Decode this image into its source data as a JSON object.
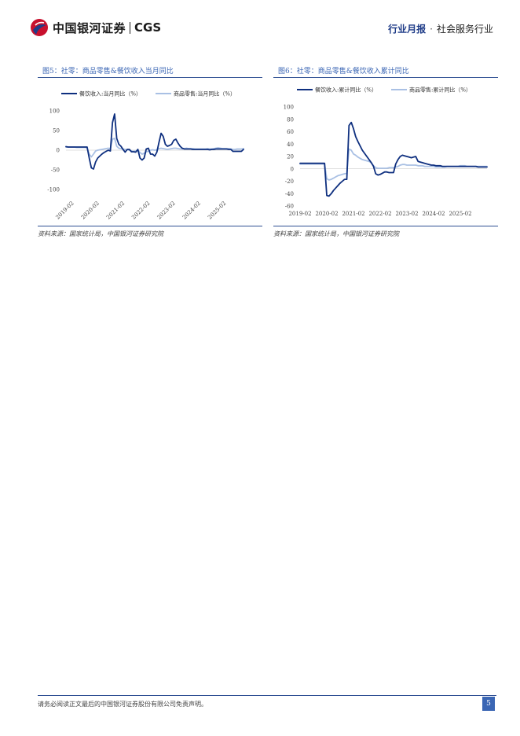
{
  "header": {
    "logo_cn": "中国银河证券",
    "logo_en": "CGS",
    "report_type": "行业月报",
    "separator": "·",
    "industry": "社会服务行业"
  },
  "colors": {
    "dark_series": "#0e2f7f",
    "light_series": "#a9c0e4",
    "accent": "#3b66b4"
  },
  "figures": [
    {
      "title": "图5：社零：商品零售&餐饮收入当月同比",
      "source": "资料来源：国家统计局，中国银河证券研究院",
      "chart_data": {
        "type": "line",
        "legend": [
          "餐饮收入:当月同比（%）",
          "商品零售:当月同比（%）"
        ],
        "ylim": [
          -100,
          100
        ],
        "yticks": [
          "100",
          "50",
          "0",
          "-50",
          "-100"
        ],
        "xticks": [
          "2019-02",
          "2020-02",
          "2021-02",
          "2022-02",
          "2023-02",
          "2024-02",
          "2025-02"
        ],
        "x": [
          0,
          1,
          2,
          3,
          4,
          5,
          6,
          7,
          8,
          9,
          10,
          11,
          12,
          13,
          14,
          15,
          16,
          17,
          18,
          19,
          20,
          21,
          22,
          23,
          24,
          25,
          26,
          27,
          28,
          29,
          30,
          31,
          32,
          33,
          34,
          35,
          36,
          37,
          38,
          39,
          40,
          41,
          42,
          43,
          44,
          45,
          46,
          47,
          48,
          49,
          50,
          51,
          52,
          53,
          54,
          55,
          56,
          57,
          58,
          59,
          60,
          61,
          62,
          63,
          64,
          65,
          66,
          67,
          68,
          69,
          70,
          71,
          72,
          73,
          74,
          75,
          76,
          77,
          78,
          79,
          80,
          81,
          82,
          83,
          84
        ],
        "series": [
          {
            "name": "餐饮收入:当月同比（%）",
            "values": [
              9,
              8,
              8,
              8,
              8,
              8,
              8,
              8,
              8,
              8,
              8,
              -20,
              -45,
              -48,
              -30,
              -20,
              -15,
              -10,
              -6,
              -3,
              0,
              -2,
              70,
              92,
              30,
              15,
              10,
              2,
              -5,
              2,
              2,
              -4,
              -4,
              -5,
              2,
              -20,
              -25,
              -20,
              3,
              5,
              -10,
              -10,
              -15,
              -5,
              20,
              43,
              35,
              15,
              10,
              12,
              15,
              25,
              28,
              18,
              10,
              5,
              3,
              3,
              3,
              3,
              2,
              2,
              2,
              2,
              2,
              2,
              2,
              2,
              1,
              2,
              2,
              3,
              3,
              3,
              3,
              3,
              3,
              2,
              2,
              -3,
              -3,
              -3,
              -3,
              -3,
              2
            ]
          },
          {
            "name": "商品零售:当月同比（%）",
            "values": [
              8,
              8,
              8,
              8,
              8,
              7,
              7,
              7,
              7,
              7,
              6,
              -10,
              -17,
              -10,
              -2,
              0,
              1,
              2,
              3,
              4,
              5,
              4,
              28,
              30,
              10,
              5,
              4,
              3,
              2,
              1,
              0,
              -2,
              -3,
              -2,
              1,
              -6,
              -10,
              -8,
              -4,
              -3,
              0,
              1,
              0,
              1,
              4,
              5,
              4,
              3,
              2,
              3,
              4,
              5,
              5,
              4,
              3,
              3,
              4,
              5,
              4,
              4,
              4,
              3,
              3,
              3,
              3,
              3,
              3,
              4,
              3,
              3,
              4,
              5,
              6,
              5,
              4,
              4,
              4,
              4,
              3,
              2,
              2,
              3,
              3,
              3,
              4
            ]
          }
        ]
      }
    },
    {
      "title": "图6：社零：商品零售&餐饮收入累计同比",
      "source": "资料来源：国家统计局，中国银河证券研究院",
      "chart_data": {
        "type": "line",
        "legend": [
          "餐饮收入:累计同比（%）",
          "商品零售:累计同比（%）"
        ],
        "ylim": [
          -60,
          100
        ],
        "yticks": [
          "100",
          "80",
          "60",
          "40",
          "20",
          "0",
          "-20",
          "-40",
          "-60"
        ],
        "xticks": [
          "2019-02",
          "2020-02",
          "2021-02",
          "2022-02",
          "2023-02",
          "2024-02",
          "2025-02"
        ],
        "x": [
          0,
          1,
          2,
          3,
          4,
          5,
          6,
          7,
          8,
          9,
          10,
          11,
          12,
          13,
          14,
          15,
          16,
          17,
          18,
          19,
          20,
          21,
          22,
          23,
          24,
          25,
          26,
          27,
          28,
          29,
          30,
          31,
          32,
          33,
          34,
          35,
          36,
          37,
          38,
          39,
          40,
          41,
          42,
          43,
          44,
          45,
          46,
          47,
          48,
          49,
          50,
          51,
          52,
          53,
          54,
          55,
          56,
          57,
          58,
          59,
          60,
          61,
          62,
          63,
          64,
          65,
          66,
          67,
          68,
          69,
          70,
          71,
          72,
          73,
          74,
          75,
          76,
          77,
          78,
          79,
          80,
          81,
          82,
          83,
          84
        ],
        "series": [
          {
            "name": "餐饮收入:累计同比（%）",
            "values": [
              9,
              9,
              9,
              9,
              9,
              9,
              9,
              9,
              9,
              9,
              9,
              9,
              -43,
              -44,
              -40,
              -35,
              -31,
              -27,
              -23,
              -20,
              -17,
              -17,
              70,
              75,
              65,
              52,
              44,
              37,
              30,
              25,
              20,
              15,
              10,
              4,
              -8,
              -10,
              -9,
              -7,
              -5,
              -5,
              -6,
              -6,
              -6,
              8,
              15,
              20,
              22,
              21,
              20,
              19,
              18,
              19,
              20,
              12,
              11,
              10,
              9,
              8,
              7,
              6,
              6,
              5,
              5,
              5,
              4,
              4,
              4,
              4,
              4,
              4,
              4,
              4,
              4,
              4,
              4,
              4,
              4,
              4,
              4,
              4,
              3,
              3,
              3,
              3,
              3
            ]
          },
          {
            "name": "商品零售:累计同比（%）",
            "values": [
              8,
              8,
              8,
              8,
              8,
              8,
              8,
              8,
              8,
              8,
              8,
              8,
              -16,
              -18,
              -17,
              -15,
              -13,
              -11,
              -10,
              -9,
              -8,
              -7,
              32,
              30,
              24,
              22,
              19,
              17,
              15,
              14,
              13,
              12,
              10,
              5,
              2,
              1,
              1,
              1,
              1,
              1,
              2,
              2,
              2,
              3,
              4,
              6,
              7,
              7,
              6,
              6,
              6,
              6,
              6,
              5,
              5,
              5,
              4,
              4,
              4,
              4,
              4,
              3,
              3,
              3,
              3,
              3,
              4,
              4,
              4,
              4,
              4,
              4,
              5,
              5,
              5,
              4,
              4,
              4,
              4,
              4,
              4,
              4,
              4,
              4,
              4
            ]
          }
        ]
      }
    }
  ],
  "footer": {
    "disclaimer": "请务必阅读正文最后的中国银河证券股份有限公司免责声明。",
    "page_number": "5"
  }
}
